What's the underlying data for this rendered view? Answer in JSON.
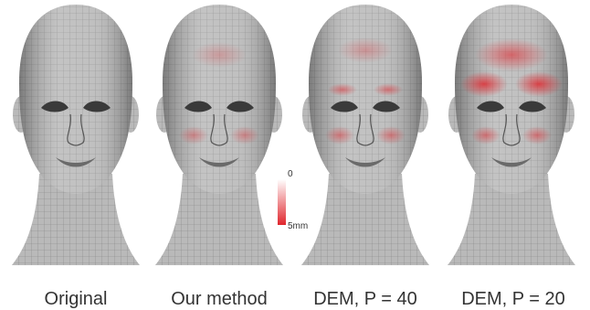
{
  "panels": [
    {
      "caption": "Original"
    },
    {
      "caption": "Our method"
    },
    {
      "caption": "DEM, P = 40"
    },
    {
      "caption": "DEM, P = 20"
    }
  ],
  "colorbar": {
    "min_label": "0",
    "max_label": "5mm"
  }
}
